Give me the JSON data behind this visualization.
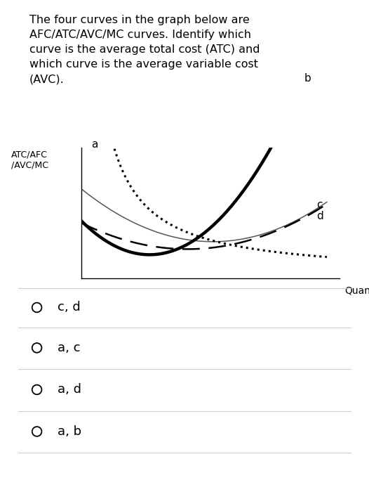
{
  "title_text": "The four curves in the graph below are\nAFC/ATC/AVC/MC curves. Identify which\ncurve is the average total cost (ATC) and\nwhich curve is the average variable cost\n(AVC).",
  "ylabel": "ATC/AFC\n/AVC/MC",
  "xlabel": "Quantity",
  "background_color": "#ffffff",
  "title_fontsize": 11.5,
  "options": [
    "c, d",
    "a, c",
    "a, d",
    "a, b"
  ],
  "option_fontsize": 13
}
